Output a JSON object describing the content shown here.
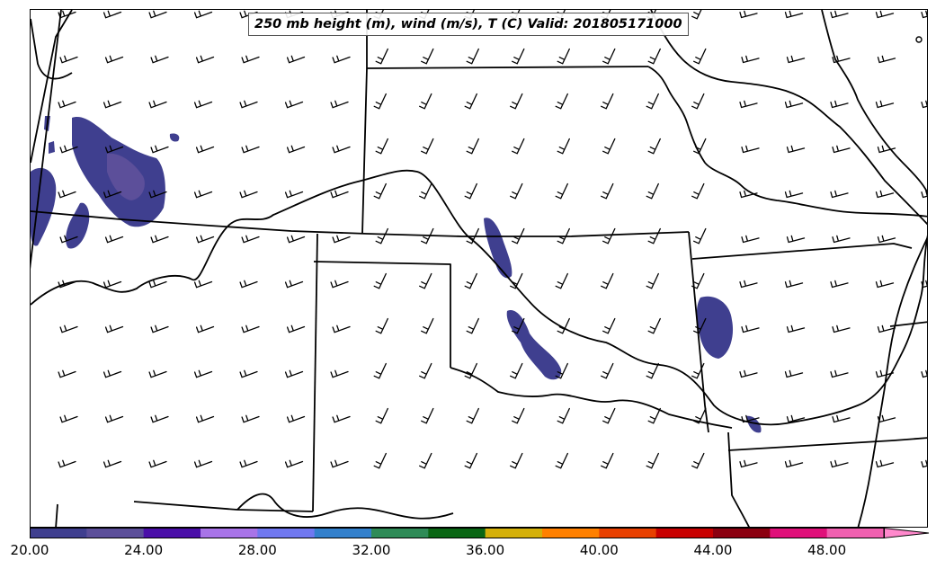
{
  "map": {
    "title": "250 mb height (m), wind (m/s), T (C) Valid: 201805171000"
  },
  "colorbar": {
    "min": 20,
    "max": 51,
    "step_tick": 4,
    "extend": "max",
    "tick_labels": [
      "20.00",
      "24.00",
      "28.00",
      "32.00",
      "36.00",
      "40.00",
      "44.00",
      "48.00"
    ],
    "bins": [
      {
        "from": 20,
        "to": 22,
        "color": "#3f3f8f"
      },
      {
        "from": 22,
        "to": 24,
        "color": "#5c4f9a"
      },
      {
        "from": 24,
        "to": 26,
        "color": "#4a0fa8"
      },
      {
        "from": 26,
        "to": 28,
        "color": "#a874e8"
      },
      {
        "from": 28,
        "to": 30,
        "color": "#7078f0"
      },
      {
        "from": 30,
        "to": 32,
        "color": "#3380cc"
      },
      {
        "from": 32,
        "to": 34,
        "color": "#2e8b57"
      },
      {
        "from": 34,
        "to": 36,
        "color": "#0a6614"
      },
      {
        "from": 36,
        "to": 38,
        "color": "#d4b00a"
      },
      {
        "from": 38,
        "to": 40,
        "color": "#ff8000"
      },
      {
        "from": 40,
        "to": 42,
        "color": "#e84000"
      },
      {
        "from": 42,
        "to": 44,
        "color": "#c80000"
      },
      {
        "from": 44,
        "to": 46,
        "color": "#8b0010"
      },
      {
        "from": 46,
        "to": 48,
        "color": "#e0107a"
      },
      {
        "from": 48,
        "to": 50,
        "color": "#f060b0"
      },
      {
        "from": 50,
        "to": 51,
        "color": "#ff88cc"
      }
    ]
  },
  "legend_colors": {
    "shading": "#3f3f8f",
    "shading_light": "#5c4f9a"
  }
}
